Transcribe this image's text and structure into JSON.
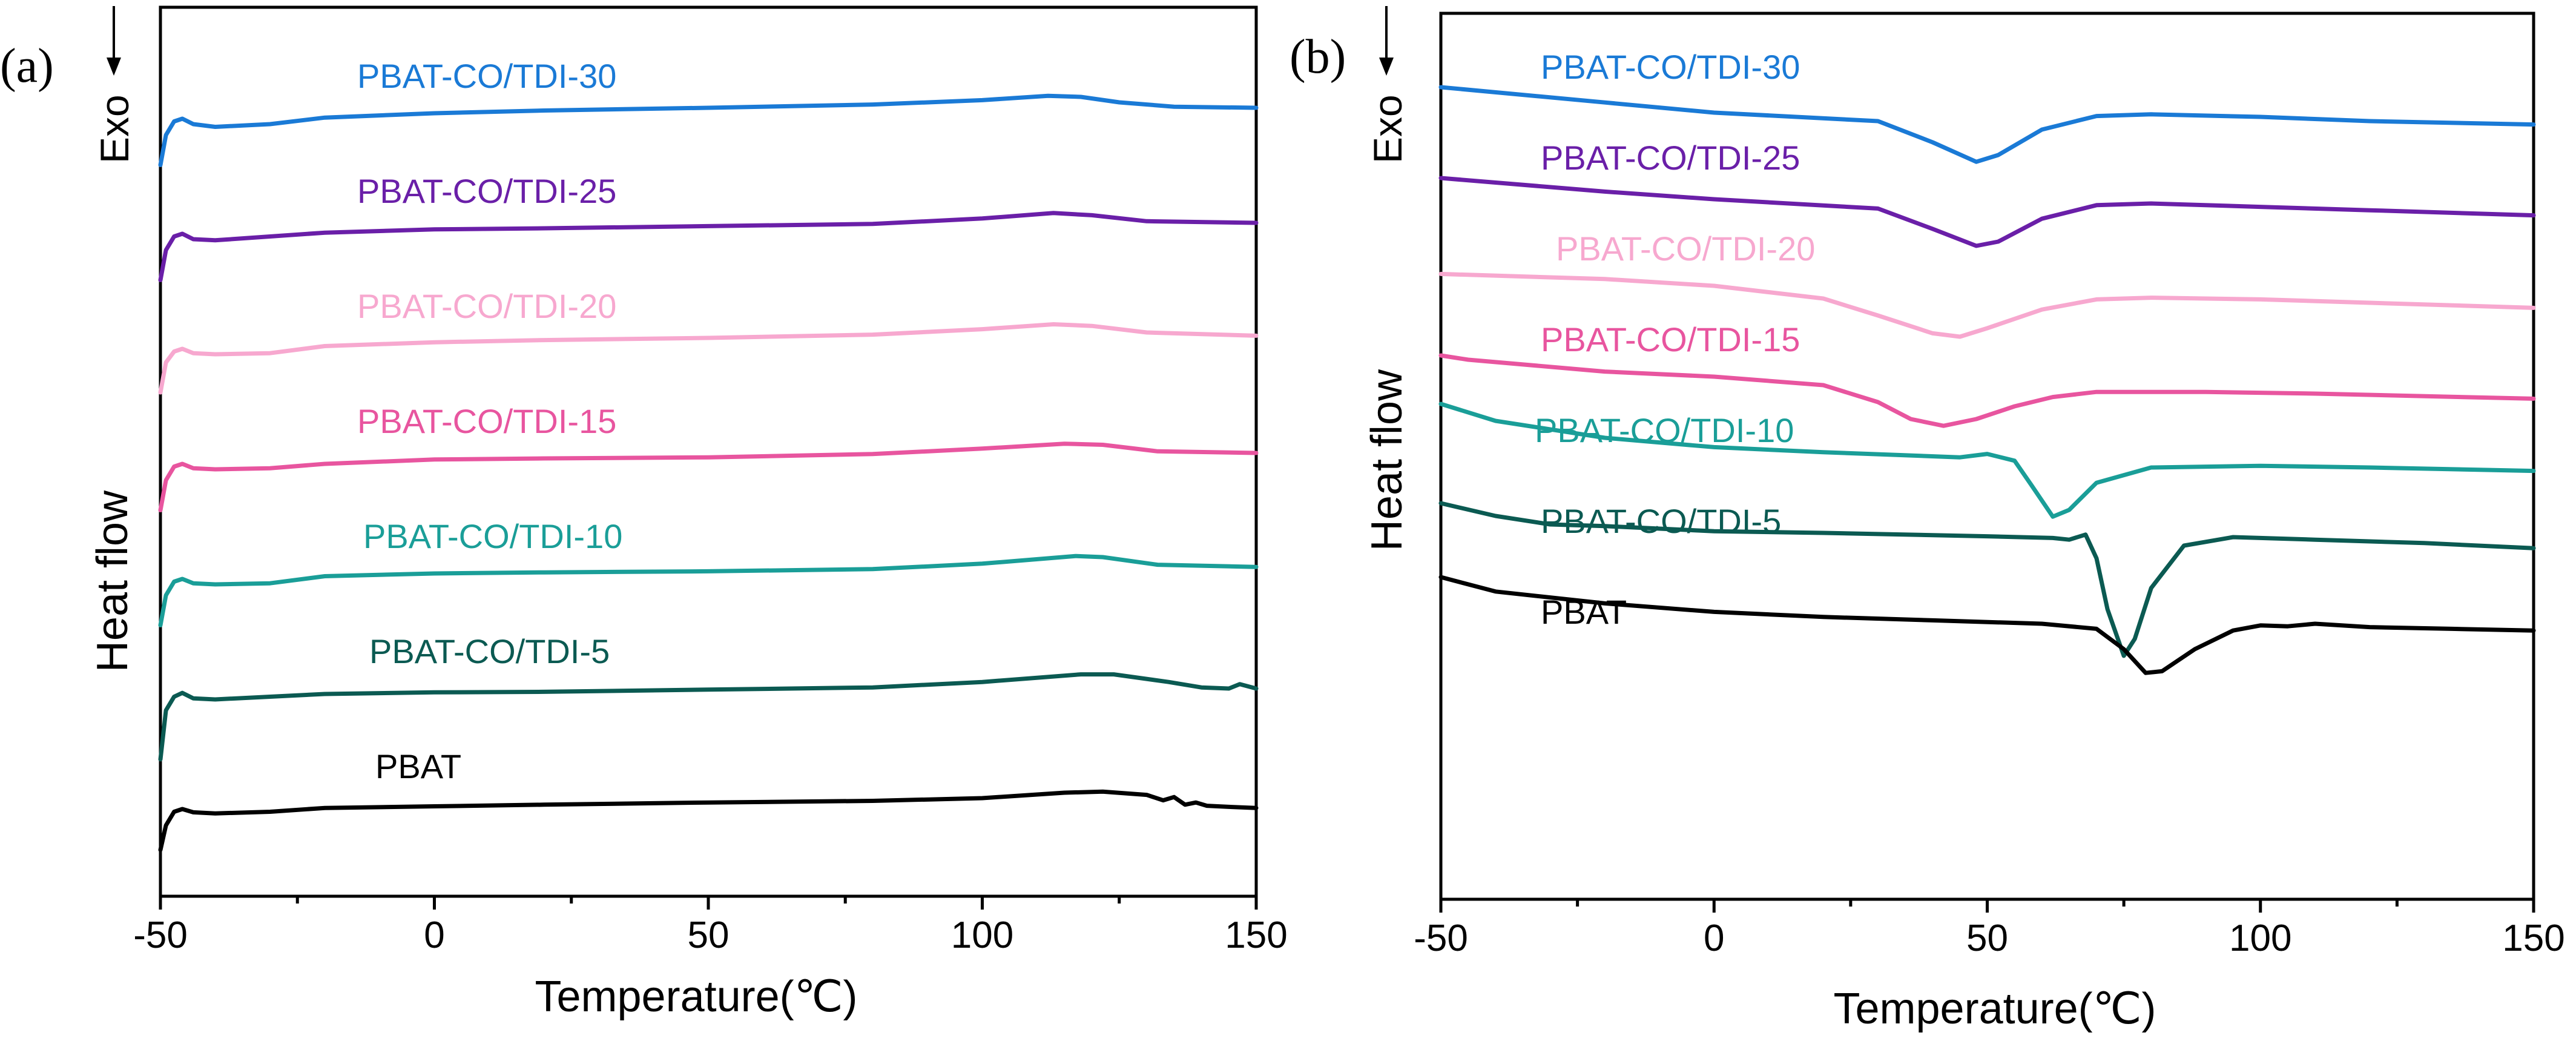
{
  "chart_data": [
    {
      "type": "line",
      "panel_label": "(a)",
      "xlabel": "Temperature(℃)",
      "ylabel": "Heat flow",
      "exo_label": "Exo",
      "xlim": [
        -50,
        150
      ],
      "xticks": [
        -50,
        0,
        50,
        100,
        150
      ],
      "y_tick_labels": "none",
      "series": [
        {
          "name": "PBAT-CO/TDI-30",
          "color": "#1a7ad6",
          "offset": 6,
          "points": [
            [
              -50,
              -0.75
            ],
            [
              -49,
              -0.2
            ],
            [
              -47.5,
              0.05
            ],
            [
              -46,
              0.1
            ],
            [
              -44,
              0.0
            ],
            [
              -40,
              -0.05
            ],
            [
              -30,
              0.0
            ],
            [
              -20,
              0.12
            ],
            [
              0,
              0.2
            ],
            [
              20,
              0.25
            ],
            [
              50,
              0.3
            ],
            [
              80,
              0.36
            ],
            [
              100,
              0.44
            ],
            [
              112,
              0.52
            ],
            [
              118,
              0.5
            ],
            [
              125,
              0.4
            ],
            [
              135,
              0.32
            ],
            [
              150,
              0.3
            ]
          ]
        },
        {
          "name": "PBAT-CO/TDI-25",
          "color": "#6a1fa8",
          "offset": 5,
          "points": [
            [
              -50,
              -0.75
            ],
            [
              -49,
              -0.2
            ],
            [
              -47.5,
              0.05
            ],
            [
              -46,
              0.1
            ],
            [
              -44,
              0.0
            ],
            [
              -40,
              -0.02
            ],
            [
              -30,
              0.05
            ],
            [
              -20,
              0.12
            ],
            [
              0,
              0.18
            ],
            [
              20,
              0.2
            ],
            [
              50,
              0.24
            ],
            [
              80,
              0.28
            ],
            [
              100,
              0.38
            ],
            [
              113,
              0.48
            ],
            [
              120,
              0.44
            ],
            [
              130,
              0.33
            ],
            [
              150,
              0.3
            ]
          ]
        },
        {
          "name": "PBAT-CO/TDI-20",
          "color": "#f7a8cf",
          "offset": 4,
          "points": [
            [
              -50,
              -0.7
            ],
            [
              -49,
              -0.15
            ],
            [
              -47.5,
              0.05
            ],
            [
              -46,
              0.1
            ],
            [
              -44,
              0.02
            ],
            [
              -40,
              0.0
            ],
            [
              -30,
              0.02
            ],
            [
              -20,
              0.15
            ],
            [
              0,
              0.22
            ],
            [
              20,
              0.26
            ],
            [
              50,
              0.3
            ],
            [
              80,
              0.36
            ],
            [
              100,
              0.46
            ],
            [
              113,
              0.55
            ],
            [
              120,
              0.52
            ],
            [
              130,
              0.4
            ],
            [
              150,
              0.34
            ]
          ]
        },
        {
          "name": "PBAT-CO/TDI-15",
          "color": "#e8559f",
          "offset": 3,
          "points": [
            [
              -50,
              -0.75
            ],
            [
              -49,
              -0.2
            ],
            [
              -47.5,
              0.05
            ],
            [
              -46,
              0.1
            ],
            [
              -44,
              0.02
            ],
            [
              -40,
              0.0
            ],
            [
              -30,
              0.02
            ],
            [
              -20,
              0.1
            ],
            [
              0,
              0.18
            ],
            [
              20,
              0.2
            ],
            [
              50,
              0.22
            ],
            [
              80,
              0.28
            ],
            [
              100,
              0.38
            ],
            [
              115,
              0.47
            ],
            [
              122,
              0.45
            ],
            [
              132,
              0.33
            ],
            [
              150,
              0.3
            ]
          ]
        },
        {
          "name": "PBAT-CO/TDI-10",
          "color": "#1a9e98",
          "offset": 2,
          "points": [
            [
              -50,
              -0.75
            ],
            [
              -49,
              -0.2
            ],
            [
              -47.5,
              0.05
            ],
            [
              -46,
              0.1
            ],
            [
              -44,
              0.02
            ],
            [
              -40,
              0.0
            ],
            [
              -30,
              0.02
            ],
            [
              -20,
              0.15
            ],
            [
              0,
              0.2
            ],
            [
              20,
              0.22
            ],
            [
              50,
              0.24
            ],
            [
              80,
              0.28
            ],
            [
              100,
              0.38
            ],
            [
              117,
              0.52
            ],
            [
              122,
              0.5
            ],
            [
              132,
              0.36
            ],
            [
              150,
              0.32
            ]
          ]
        },
        {
          "name": "PBAT-CO/TDI-5",
          "color": "#0b5a52",
          "offset": 1,
          "points": [
            [
              -50,
              -1.1
            ],
            [
              -49,
              -0.2
            ],
            [
              -47.5,
              0.05
            ],
            [
              -46,
              0.12
            ],
            [
              -44,
              0.02
            ],
            [
              -40,
              0.0
            ],
            [
              -30,
              0.05
            ],
            [
              -20,
              0.1
            ],
            [
              0,
              0.13
            ],
            [
              20,
              0.14
            ],
            [
              50,
              0.18
            ],
            [
              80,
              0.22
            ],
            [
              100,
              0.32
            ],
            [
              118,
              0.46
            ],
            [
              124,
              0.46
            ],
            [
              134,
              0.32
            ],
            [
              140,
              0.22
            ],
            [
              145,
              0.2
            ],
            [
              147,
              0.28
            ],
            [
              150,
              0.2
            ]
          ]
        },
        {
          "name": "PBAT",
          "color": "#000000",
          "offset": 0,
          "points": [
            [
              -50,
              -0.65
            ],
            [
              -49,
              -0.2
            ],
            [
              -47.5,
              0.05
            ],
            [
              -46,
              0.1
            ],
            [
              -44,
              0.04
            ],
            [
              -40,
              0.02
            ],
            [
              -30,
              0.05
            ],
            [
              -20,
              0.12
            ],
            [
              0,
              0.15
            ],
            [
              20,
              0.18
            ],
            [
              50,
              0.22
            ],
            [
              80,
              0.25
            ],
            [
              100,
              0.3
            ],
            [
              115,
              0.4
            ],
            [
              122,
              0.42
            ],
            [
              130,
              0.36
            ],
            [
              133,
              0.26
            ],
            [
              135,
              0.32
            ],
            [
              137,
              0.18
            ],
            [
              139,
              0.22
            ],
            [
              141,
              0.16
            ],
            [
              145,
              0.14
            ],
            [
              150,
              0.12
            ]
          ]
        }
      ]
    },
    {
      "type": "line",
      "panel_label": "(b)",
      "xlabel": "Temperature(℃)",
      "ylabel": "Heat flow",
      "exo_label": "Exo",
      "xlim": [
        -50,
        150
      ],
      "xticks": [
        -50,
        0,
        50,
        100,
        150
      ],
      "y_tick_labels": "none",
      "series": [
        {
          "name": "PBAT-CO/TDI-30",
          "color": "#1a7ad6",
          "offset": 6,
          "points": [
            [
              -50,
              0.4
            ],
            [
              -20,
              0.22
            ],
            [
              0,
              0.1
            ],
            [
              30,
              0.0
            ],
            [
              40,
              -0.25
            ],
            [
              48,
              -0.48
            ],
            [
              52,
              -0.4
            ],
            [
              60,
              -0.1
            ],
            [
              70,
              0.06
            ],
            [
              80,
              0.08
            ],
            [
              100,
              0.05
            ],
            [
              120,
              0.0
            ],
            [
              150,
              -0.04
            ]
          ]
        },
        {
          "name": "PBAT-CO/TDI-25",
          "color": "#6a1fa8",
          "offset": 5,
          "points": [
            [
              -50,
              0.4
            ],
            [
              -20,
              0.24
            ],
            [
              0,
              0.15
            ],
            [
              30,
              0.04
            ],
            [
              40,
              -0.2
            ],
            [
              48,
              -0.4
            ],
            [
              52,
              -0.35
            ],
            [
              60,
              -0.08
            ],
            [
              70,
              0.08
            ],
            [
              80,
              0.1
            ],
            [
              100,
              0.06
            ],
            [
              120,
              0.02
            ],
            [
              150,
              -0.04
            ]
          ]
        },
        {
          "name": "PBAT-CO/TDI-20",
          "color": "#f7a8cf",
          "offset": 4,
          "points": [
            [
              -50,
              0.34
            ],
            [
              -20,
              0.28
            ],
            [
              0,
              0.2
            ],
            [
              20,
              0.05
            ],
            [
              30,
              -0.15
            ],
            [
              40,
              -0.36
            ],
            [
              45,
              -0.4
            ],
            [
              50,
              -0.3
            ],
            [
              60,
              -0.08
            ],
            [
              70,
              0.04
            ],
            [
              80,
              0.06
            ],
            [
              100,
              0.04
            ],
            [
              120,
              0.0
            ],
            [
              150,
              -0.06
            ]
          ]
        },
        {
          "name": "PBAT-CO/TDI-15",
          "color": "#e8559f",
          "offset": 3,
          "points": [
            [
              -50,
              0.45
            ],
            [
              -45,
              0.4
            ],
            [
              -20,
              0.26
            ],
            [
              0,
              0.2
            ],
            [
              20,
              0.1
            ],
            [
              30,
              -0.1
            ],
            [
              36,
              -0.3
            ],
            [
              42,
              -0.38
            ],
            [
              48,
              -0.3
            ],
            [
              55,
              -0.15
            ],
            [
              62,
              -0.04
            ],
            [
              70,
              0.02
            ],
            [
              90,
              0.02
            ],
            [
              110,
              0.0
            ],
            [
              150,
              -0.06
            ]
          ]
        },
        {
          "name": "PBAT-CO/TDI-10",
          "color": "#1a9e98",
          "offset": 2,
          "points": [
            [
              -50,
              0.95
            ],
            [
              -40,
              0.75
            ],
            [
              -20,
              0.55
            ],
            [
              0,
              0.44
            ],
            [
              20,
              0.38
            ],
            [
              45,
              0.32
            ],
            [
              50,
              0.36
            ],
            [
              55,
              0.28
            ],
            [
              58,
              0.0
            ],
            [
              62,
              -0.38
            ],
            [
              65,
              -0.3
            ],
            [
              70,
              0.02
            ],
            [
              80,
              0.2
            ],
            [
              100,
              0.22
            ],
            [
              120,
              0.2
            ],
            [
              150,
              0.16
            ]
          ]
        },
        {
          "name": "PBAT-CO/TDI-5",
          "color": "#0b5a52",
          "offset": 1,
          "points": [
            [
              -50,
              0.85
            ],
            [
              -40,
              0.7
            ],
            [
              -30,
              0.6
            ],
            [
              -20,
              0.58
            ],
            [
              0,
              0.52
            ],
            [
              20,
              0.5
            ],
            [
              50,
              0.46
            ],
            [
              62,
              0.44
            ],
            [
              65,
              0.42
            ],
            [
              68,
              0.48
            ],
            [
              70,
              0.2
            ],
            [
              72,
              -0.4
            ],
            [
              75,
              -0.95
            ],
            [
              77,
              -0.75
            ],
            [
              80,
              -0.15
            ],
            [
              86,
              0.35
            ],
            [
              95,
              0.45
            ],
            [
              110,
              0.42
            ],
            [
              130,
              0.38
            ],
            [
              150,
              0.32
            ]
          ]
        },
        {
          "name": "PBAT",
          "color": "#000000",
          "offset": 0,
          "points": [
            [
              -50,
              1.05
            ],
            [
              -40,
              0.88
            ],
            [
              -20,
              0.74
            ],
            [
              0,
              0.64
            ],
            [
              20,
              0.58
            ],
            [
              40,
              0.54
            ],
            [
              60,
              0.5
            ],
            [
              70,
              0.44
            ],
            [
              75,
              0.2
            ],
            [
              79,
              -0.08
            ],
            [
              82,
              -0.06
            ],
            [
              88,
              0.2
            ],
            [
              95,
              0.42
            ],
            [
              100,
              0.48
            ],
            [
              105,
              0.47
            ],
            [
              110,
              0.5
            ],
            [
              120,
              0.46
            ],
            [
              135,
              0.44
            ],
            [
              150,
              0.42
            ]
          ]
        }
      ]
    }
  ]
}
